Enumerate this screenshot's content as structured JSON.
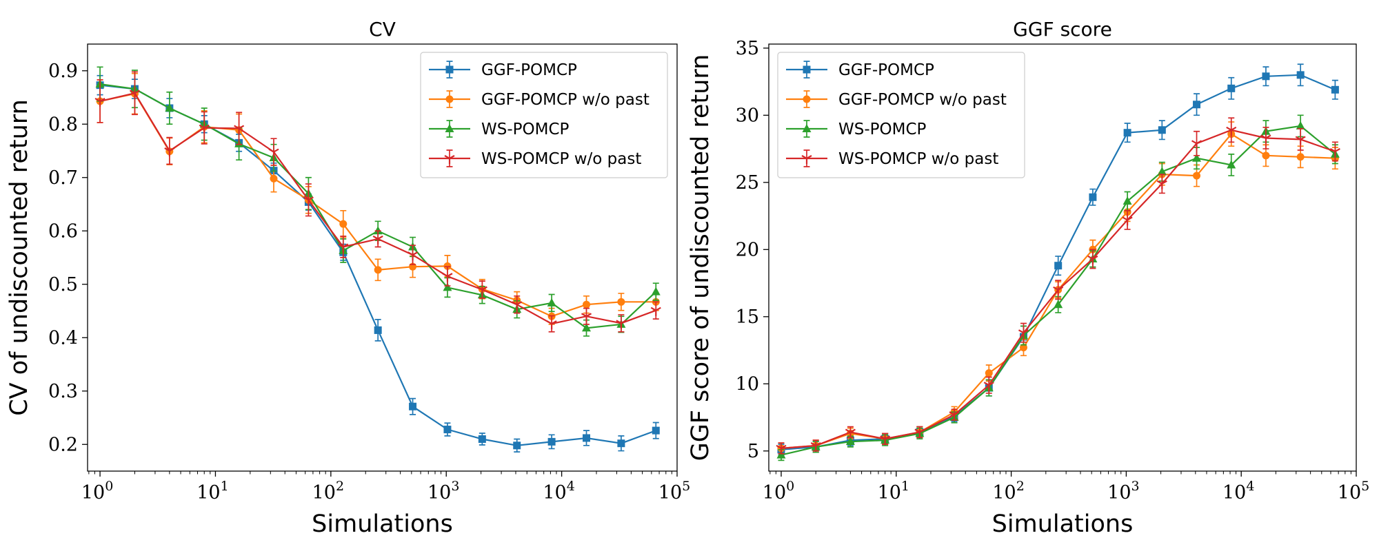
{
  "chart_data": [
    {
      "type": "line",
      "title": "CV",
      "xlabel": "Simulations",
      "ylabel": "CV of undiscounted return",
      "x_scale": "log",
      "xlim": [
        0.78,
        100000
      ],
      "ylim": [
        0.15,
        0.95
      ],
      "x_ticks": [
        1,
        10,
        100,
        1000,
        10000,
        100000
      ],
      "x_tick_labels": [
        {
          "base": "10",
          "exp": "0"
        },
        {
          "base": "10",
          "exp": "1"
        },
        {
          "base": "10",
          "exp": "2"
        },
        {
          "base": "10",
          "exp": "3"
        },
        {
          "base": "10",
          "exp": "4"
        },
        {
          "base": "10",
          "exp": "5"
        }
      ],
      "y_ticks": [
        0.2,
        0.3,
        0.4,
        0.5,
        0.6,
        0.7,
        0.8,
        0.9
      ],
      "y_tick_labels": [
        "0.2",
        "0.3",
        "0.4",
        "0.5",
        "0.6",
        "0.7",
        "0.8",
        "0.9"
      ],
      "grid": false,
      "legend_position": "top-right",
      "x": [
        1,
        2,
        4,
        8,
        16,
        32,
        64,
        128,
        256,
        512,
        1024,
        2048,
        4096,
        8192,
        16384,
        32768,
        65536
      ],
      "series": [
        {
          "name": "GGF-POMCP",
          "color": "#1f77b4",
          "marker": "square",
          "values": [
            0.873,
            0.866,
            0.83,
            0.8,
            0.765,
            0.713,
            0.654,
            0.56,
            0.414,
            0.271,
            0.228,
            0.21,
            0.198,
            0.205,
            0.212,
            0.202,
            0.226
          ],
          "errors": [
            0.018,
            0.018,
            0.018,
            0.016,
            0.016,
            0.014,
            0.015,
            0.015,
            0.02,
            0.015,
            0.012,
            0.011,
            0.012,
            0.013,
            0.014,
            0.014,
            0.015
          ]
        },
        {
          "name": "GGF-POMCP w/o past",
          "color": "#ff7f0e",
          "marker": "circle",
          "values": [
            0.843,
            0.857,
            0.749,
            0.795,
            0.789,
            0.698,
            0.658,
            0.613,
            0.527,
            0.533,
            0.534,
            0.491,
            0.47,
            0.44,
            0.462,
            0.467,
            0.467
          ],
          "errors": [
            0.04,
            0.038,
            0.025,
            0.03,
            0.03,
            0.025,
            0.025,
            0.025,
            0.02,
            0.02,
            0.02,
            0.018,
            0.016,
            0.015,
            0.016,
            0.016,
            0.016
          ]
        },
        {
          "name": "WS-POMCP",
          "color": "#2ca02c",
          "marker": "triangle",
          "values": [
            0.875,
            0.866,
            0.83,
            0.8,
            0.763,
            0.737,
            0.67,
            0.563,
            0.6,
            0.57,
            0.494,
            0.48,
            0.453,
            0.465,
            0.418,
            0.425,
            0.486
          ],
          "errors": [
            0.032,
            0.035,
            0.03,
            0.03,
            0.03,
            0.025,
            0.03,
            0.022,
            0.018,
            0.018,
            0.018,
            0.016,
            0.016,
            0.016,
            0.015,
            0.015,
            0.016
          ]
        },
        {
          "name": "WS-POMCP w/o past",
          "color": "#d62728",
          "marker": "tri",
          "values": [
            0.843,
            0.858,
            0.75,
            0.793,
            0.792,
            0.748,
            0.658,
            0.57,
            0.585,
            0.555,
            0.515,
            0.49,
            0.462,
            0.426,
            0.44,
            0.427,
            0.451
          ],
          "errors": [
            0.04,
            0.04,
            0.025,
            0.03,
            0.03,
            0.025,
            0.03,
            0.02,
            0.015,
            0.018,
            0.018,
            0.016,
            0.016,
            0.015,
            0.015,
            0.016,
            0.016
          ]
        }
      ]
    },
    {
      "type": "line",
      "title": "GGF score",
      "xlabel": "Simulations",
      "ylabel": "GGF score of undiscounted return",
      "x_scale": "log",
      "xlim": [
        0.78,
        100000
      ],
      "ylim": [
        3.5,
        35.3
      ],
      "x_ticks": [
        1,
        10,
        100,
        1000,
        10000,
        100000
      ],
      "x_tick_labels": [
        {
          "base": "10",
          "exp": "0"
        },
        {
          "base": "10",
          "exp": "1"
        },
        {
          "base": "10",
          "exp": "2"
        },
        {
          "base": "10",
          "exp": "3"
        },
        {
          "base": "10",
          "exp": "4"
        },
        {
          "base": "10",
          "exp": "5"
        }
      ],
      "y_ticks": [
        5,
        10,
        15,
        20,
        25,
        30,
        35
      ],
      "y_tick_labels": [
        "5",
        "10",
        "15",
        "20",
        "25",
        "30",
        "35"
      ],
      "grid": false,
      "legend_position": "top-left",
      "x": [
        1,
        2,
        4,
        8,
        16,
        32,
        64,
        128,
        256,
        512,
        1024,
        2048,
        4096,
        8192,
        16384,
        32768,
        65536
      ],
      "series": [
        {
          "name": "GGF-POMCP",
          "color": "#1f77b4",
          "marker": "square",
          "values": [
            5.1,
            5.3,
            5.8,
            5.9,
            6.4,
            7.6,
            9.7,
            13.5,
            18.8,
            23.9,
            28.7,
            28.9,
            30.8,
            32.0,
            32.9,
            33.0,
            31.9
          ],
          "errors": [
            0.4,
            0.4,
            0.4,
            0.4,
            0.4,
            0.4,
            0.6,
            0.8,
            0.7,
            0.6,
            0.7,
            0.7,
            0.8,
            0.8,
            0.7,
            0.8,
            0.7
          ]
        },
        {
          "name": "GGF-POMCP w/o past",
          "color": "#ff7f0e",
          "marker": "circle",
          "values": [
            5.2,
            5.4,
            6.3,
            5.9,
            6.4,
            7.9,
            10.8,
            12.7,
            17.0,
            20.0,
            22.8,
            25.6,
            25.5,
            28.6,
            27.0,
            26.9,
            26.8
          ],
          "errors": [
            0.4,
            0.4,
            0.4,
            0.4,
            0.4,
            0.4,
            0.6,
            0.6,
            0.6,
            0.7,
            0.7,
            0.8,
            0.8,
            0.9,
            0.8,
            0.8,
            0.8
          ]
        },
        {
          "name": "WS-POMCP",
          "color": "#2ca02c",
          "marker": "triangle",
          "values": [
            4.7,
            5.3,
            5.7,
            5.8,
            6.3,
            7.5,
            9.7,
            13.6,
            15.9,
            19.3,
            23.6,
            25.8,
            26.8,
            26.3,
            28.8,
            29.2,
            27.1
          ],
          "errors": [
            0.4,
            0.4,
            0.4,
            0.4,
            0.4,
            0.4,
            0.6,
            0.7,
            0.6,
            0.6,
            0.7,
            0.7,
            0.8,
            0.8,
            0.8,
            0.8,
            0.7
          ]
        },
        {
          "name": "WS-POMCP w/o past",
          "color": "#d62728",
          "marker": "tri",
          "values": [
            5.2,
            5.4,
            6.4,
            5.9,
            6.4,
            7.7,
            9.9,
            13.8,
            17.0,
            19.3,
            22.2,
            24.9,
            27.9,
            28.9,
            28.3,
            28.2,
            27.3
          ],
          "errors": [
            0.4,
            0.4,
            0.4,
            0.4,
            0.4,
            0.4,
            0.6,
            0.7,
            0.7,
            0.7,
            0.7,
            0.7,
            0.9,
            0.9,
            0.8,
            0.8,
            0.7
          ]
        }
      ]
    }
  ]
}
